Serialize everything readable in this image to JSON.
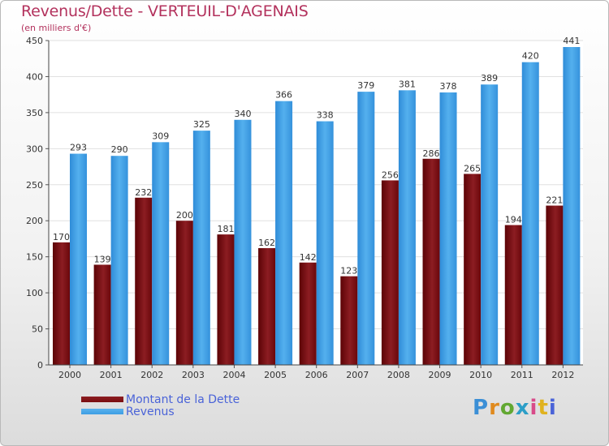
{
  "title": "Revenus/Dette - VERTEUIL-D'AGENAIS",
  "subtitle": "(en milliers d'€)",
  "logo": "Proxiti",
  "colors": {
    "dette": "#7a0e10",
    "revenus": "#3d9ee3",
    "title": "#b3325d",
    "legend_text": "#4a63d8"
  },
  "chart_data": {
    "type": "bar",
    "categories": [
      "2000",
      "2001",
      "2002",
      "2003",
      "2004",
      "2005",
      "2006",
      "2007",
      "2008",
      "2009",
      "2010",
      "2011",
      "2012"
    ],
    "series": [
      {
        "name": "Montant de la Dette",
        "values": [
          170,
          139,
          232,
          200,
          181,
          162,
          142,
          123,
          256,
          286,
          265,
          194,
          221
        ]
      },
      {
        "name": "Revenus",
        "values": [
          293,
          290,
          309,
          325,
          340,
          366,
          338,
          379,
          381,
          378,
          389,
          420,
          441
        ]
      }
    ],
    "ylim": [
      0,
      450
    ],
    "yticks": [
      0,
      50,
      100,
      150,
      200,
      250,
      300,
      350,
      400,
      450
    ],
    "grid": true,
    "legend_position": "bottom-left"
  }
}
